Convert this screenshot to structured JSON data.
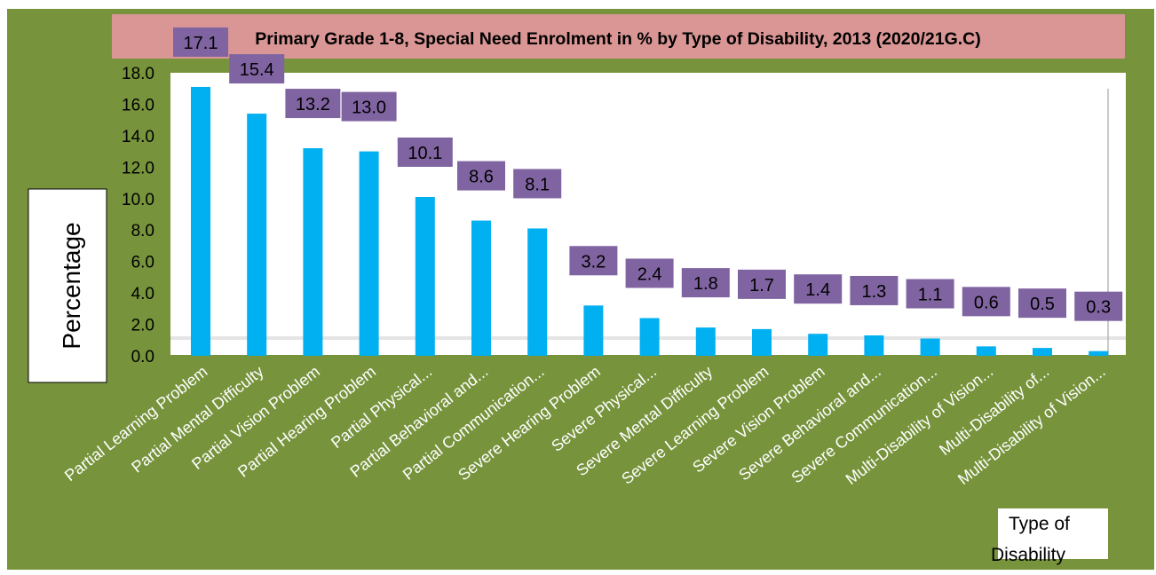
{
  "chart_data": {
    "type": "bar",
    "title": "Primary Grade 1-8, Special Need Enrolment in % by Type of Disability, 2013 (2020/21G.C)",
    "ylabel": "Percentage",
    "xlabel": "Type of Disability",
    "ylim": [
      0,
      18
    ],
    "yticks": [
      "0.0",
      "2.0",
      "4.0",
      "6.0",
      "8.0",
      "10.0",
      "12.0",
      "14.0",
      "16.0",
      "18.0"
    ],
    "categories": [
      "Partial Learning Problem",
      "Partial Mental Difficulty",
      "Partial Vision Problem",
      "Partial Hearing Problem",
      "Partial Physical...",
      "Partial Behavioral and...",
      "Partial Communication...",
      "Severe Hearing Problem",
      "Severe Physical...",
      "Severe Mental Difficulty",
      "Severe Learning Problem",
      "Severe Vision Problem",
      "Severe Behavioral and...",
      "Severe Communication...",
      "Multi-Disability of Vision...",
      "Multi-Disability of...",
      "Multi-Disability of Vision..."
    ],
    "values": [
      17.1,
      15.4,
      13.2,
      13.0,
      10.1,
      8.6,
      8.1,
      3.2,
      2.4,
      1.8,
      1.7,
      1.4,
      1.3,
      1.1,
      0.6,
      0.5,
      0.3
    ],
    "data_labels": [
      "17.1",
      "15.4",
      "13.2",
      "13.0",
      "10.1",
      "8.6",
      "8.1",
      "3.2",
      "2.4",
      "1.8",
      "1.7",
      "1.4",
      "1.3",
      "1.1",
      "0.6",
      "0.5",
      "0.3"
    ],
    "grid": false,
    "legend": "none",
    "colors": {
      "background": "#77933c",
      "plot_area": "#ffffff",
      "bar": "#00b0f0",
      "data_label_bg": "#8064a2",
      "title_bg": "#d99694"
    }
  }
}
